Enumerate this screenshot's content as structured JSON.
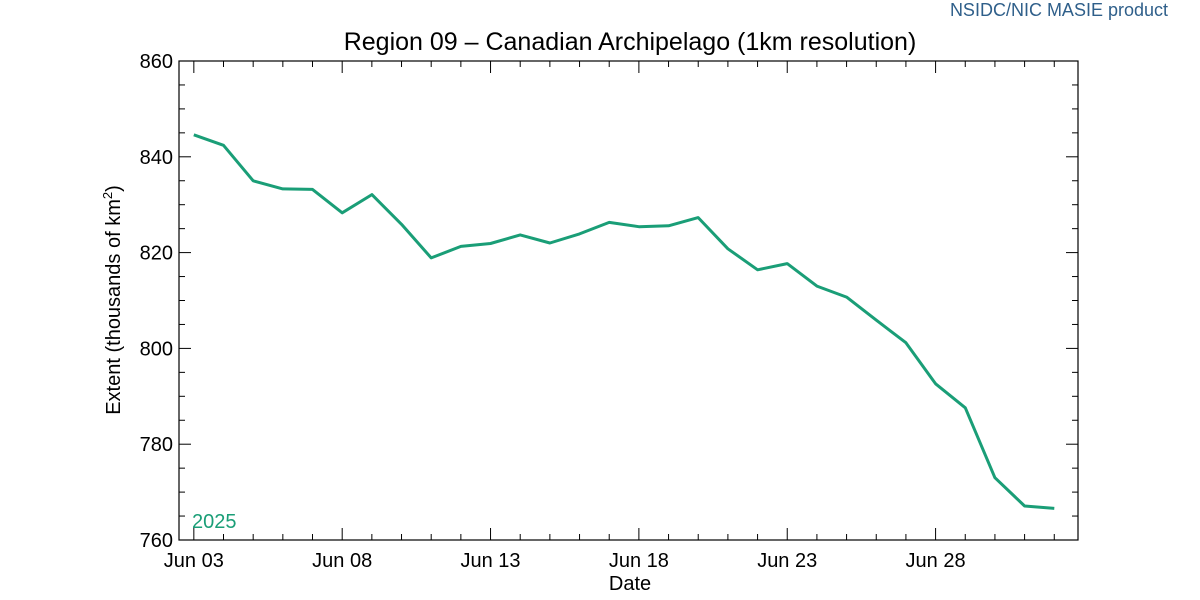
{
  "credit": "NSIDC/NIC MASIE product",
  "chart_data": {
    "type": "line",
    "title": "Region 09 – Canadian Archipelago (1km resolution)",
    "xlabel": "Date",
    "ylabel": "Extent (thousands of km²)",
    "ylim": [
      760,
      860
    ],
    "yticks": [
      760,
      780,
      800,
      820,
      840,
      860
    ],
    "xticks": [
      {
        "label": "Jun 03",
        "day": 3
      },
      {
        "label": "Jun 08",
        "day": 8
      },
      {
        "label": "Jun 13",
        "day": 13
      },
      {
        "label": "Jun 18",
        "day": 18
      },
      {
        "label": "Jun 23",
        "day": 23
      },
      {
        "label": "Jun 28",
        "day": 28
      }
    ],
    "xlim_days": [
      2.5,
      32.8
    ],
    "grid": false,
    "series": [
      {
        "name": "2025",
        "color": "#1a9e77",
        "x": [
          "Jun 03",
          "Jun 04",
          "Jun 05",
          "Jun 06",
          "Jun 07",
          "Jun 08",
          "Jun 09",
          "Jun 10",
          "Jun 11",
          "Jun 12",
          "Jun 13",
          "Jun 14",
          "Jun 15",
          "Jun 16",
          "Jun 17",
          "Jun 18",
          "Jun 19",
          "Jun 20",
          "Jun 21",
          "Jun 22",
          "Jun 23",
          "Jun 24",
          "Jun 25",
          "Jun 26",
          "Jun 27",
          "Jun 28",
          "Jun 29",
          "Jun 30",
          "Jul 01",
          "Jul 02"
        ],
        "days": [
          3,
          4,
          5,
          6,
          7,
          8,
          9,
          10,
          11,
          12,
          13,
          14,
          15,
          16,
          17,
          18,
          19,
          20,
          21,
          22,
          23,
          24,
          25,
          26,
          27,
          28,
          29,
          30,
          31,
          32
        ],
        "values": [
          844.6,
          842.4,
          835.0,
          833.3,
          833.2,
          828.3,
          832.1,
          825.9,
          818.9,
          821.3,
          821.9,
          823.7,
          822.0,
          823.9,
          826.3,
          825.4,
          825.6,
          827.3,
          820.8,
          816.4,
          817.7,
          813.0,
          810.7,
          805.9,
          801.2,
          792.6,
          787.6,
          773.0,
          767.1,
          766.6
        ]
      }
    ]
  }
}
